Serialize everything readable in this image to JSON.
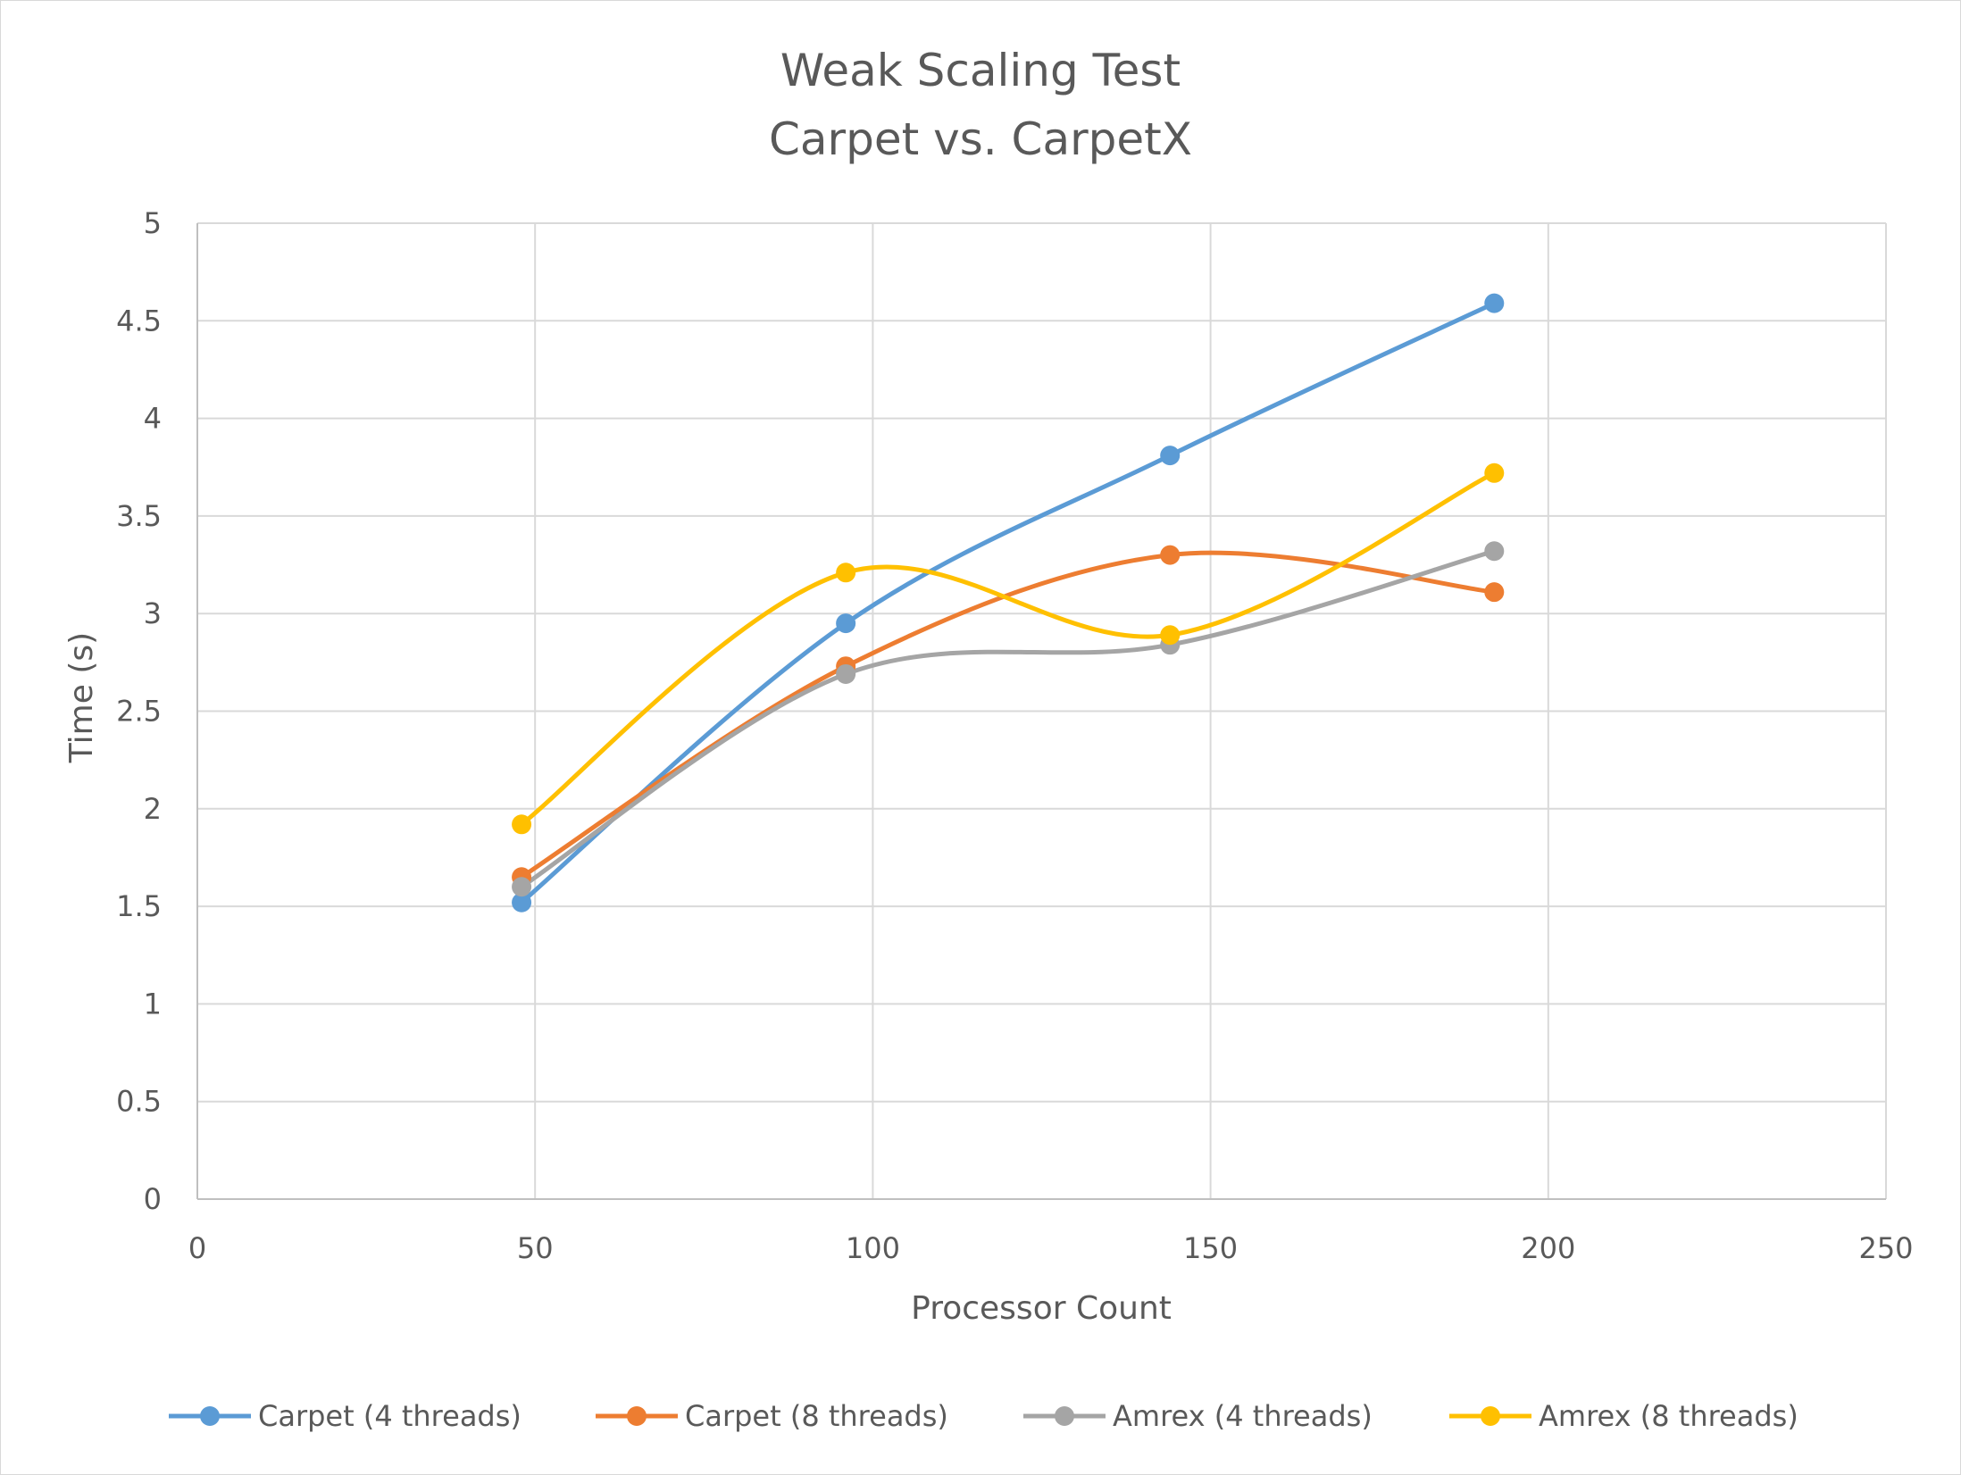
{
  "chart_data": {
    "type": "scatter",
    "title_lines": [
      "Weak Scaling Test",
      "Carpet vs. CarpetX"
    ],
    "xlabel": "Processor Count",
    "ylabel": "Time (s)",
    "xlim": [
      0,
      250
    ],
    "ylim": [
      0,
      5
    ],
    "x_ticks": [
      "0",
      "50",
      "100",
      "150",
      "200",
      "250"
    ],
    "y_ticks": [
      "0",
      "0.5",
      "1",
      "1.5",
      "2",
      "2.5",
      "3",
      "3.5",
      "4",
      "4.5",
      "5"
    ],
    "grid": true,
    "smooth_lines": true,
    "legend_position": "bottom",
    "series": [
      {
        "name": "Carpet (4 threads)",
        "color": "#5b9bd5",
        "x": [
          48,
          96,
          144,
          192
        ],
        "y": [
          1.52,
          2.95,
          3.81,
          4.59
        ]
      },
      {
        "name": "Carpet (8 threads)",
        "color": "#ed7d31",
        "x": [
          48,
          96,
          144,
          192
        ],
        "y": [
          1.65,
          2.73,
          3.3,
          3.11
        ]
      },
      {
        "name": "Amrex (4 threads)",
        "color": "#a5a5a5",
        "x": [
          48,
          96,
          144,
          192
        ],
        "y": [
          1.6,
          2.69,
          2.84,
          3.32
        ]
      },
      {
        "name": "Amrex (8 threads)",
        "color": "#ffc000",
        "x": [
          48,
          96,
          144,
          192
        ],
        "y": [
          1.92,
          3.21,
          2.89,
          3.72
        ]
      }
    ]
  }
}
